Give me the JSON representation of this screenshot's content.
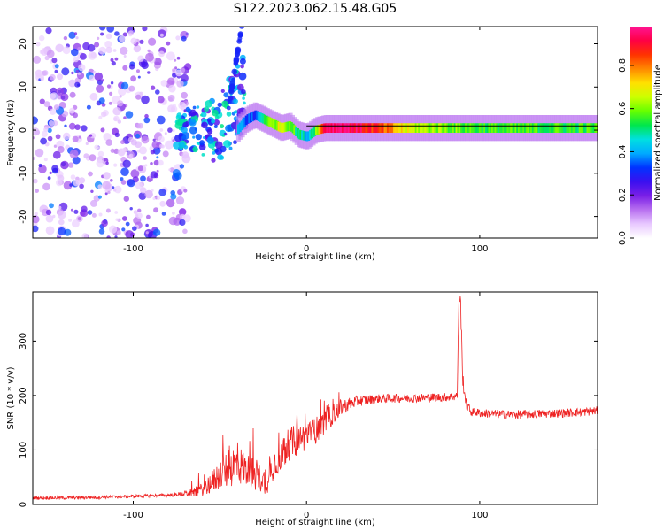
{
  "title": "S122.2023.062.15.48.G05",
  "chart_data": [
    {
      "type": "heatmap",
      "xlabel": "Height of straight line (km)",
      "ylabel": "Frequency (Hz)",
      "xlim": [
        -158,
        168
      ],
      "ylim": [
        -25,
        24
      ],
      "xticks": [
        -100,
        0,
        100
      ],
      "yticks": [
        -20,
        -10,
        0,
        10,
        20
      ],
      "colorbar": {
        "label": "Normalized spectral amplitude",
        "range": [
          0.0,
          0.98
        ],
        "ticks": [
          0.0,
          0.2,
          0.4,
          0.6,
          0.8
        ],
        "colormap": [
          "#ffffff",
          "#e8c8ff",
          "#b870f0",
          "#7a1fe6",
          "#3a10f0",
          "#0033ff",
          "#00aaff",
          "#00e0e0",
          "#00e64d",
          "#66ff00",
          "#ccff00",
          "#ffe000",
          "#ff8800",
          "#ff3300",
          "#ff0044",
          "#ff1493"
        ]
      },
      "ridge": {
        "x": [
          -100,
          -80,
          -60,
          -45,
          -35,
          -30,
          -25,
          -20,
          -15,
          -10,
          -5,
          0,
          5,
          10,
          20,
          40,
          60,
          80,
          100,
          120,
          140,
          168
        ],
        "y": [
          1.5,
          2,
          0.5,
          -2,
          2.5,
          3.5,
          2.5,
          1.5,
          0.5,
          1,
          -1,
          -1.5,
          0,
          0.5,
          0.5,
          0.5,
          0.5,
          0.5,
          0.5,
          0.5,
          0.5,
          0.5
        ],
        "amplitude": [
          0.3,
          0.35,
          0.4,
          0.45,
          0.35,
          0.3,
          0.55,
          0.6,
          0.7,
          0.6,
          0.5,
          0.4,
          0.6,
          0.95,
          0.98,
          0.85,
          0.65,
          0.6,
          0.55,
          0.55,
          0.55,
          0.55
        ]
      }
    },
    {
      "type": "line",
      "xlabel": "Height of straight line (km)",
      "ylabel": "SNR (10 * v/v)",
      "xlim": [
        -158,
        168
      ],
      "ylim": [
        0,
        390
      ],
      "xticks": [
        -100,
        0,
        100
      ],
      "yticks": [
        0,
        100,
        200,
        300
      ],
      "color": "#ee2222",
      "series": [
        {
          "x": [
            -158,
            -140,
            -120,
            -100,
            -90,
            -80,
            -75,
            -70,
            -65,
            -60,
            -55,
            -50,
            -45,
            -40,
            -35,
            -30,
            -25,
            -22,
            -20,
            -15,
            -10,
            -5,
            0,
            5,
            10,
            15,
            20,
            25,
            30,
            40,
            50,
            60,
            70,
            80,
            85,
            87,
            88,
            89,
            90,
            92,
            95,
            100,
            110,
            120,
            130,
            140,
            150,
            160,
            168
          ],
          "y": [
            12,
            12,
            13,
            15,
            16,
            17,
            18,
            20,
            22,
            28,
            40,
            55,
            65,
            75,
            65,
            55,
            45,
            35,
            70,
            90,
            110,
            120,
            125,
            135,
            150,
            165,
            178,
            185,
            190,
            194,
            195,
            195,
            196,
            197,
            198,
            200,
            380,
            370,
            240,
            185,
            170,
            168,
            166,
            165,
            166,
            167,
            168,
            170,
            172
          ],
          "noise": [
            3,
            3,
            3,
            3,
            3,
            3,
            4,
            5,
            8,
            12,
            20,
            28,
            35,
            40,
            30,
            30,
            25,
            15,
            30,
            30,
            30,
            30,
            25,
            25,
            22,
            20,
            15,
            12,
            10,
            8,
            8,
            8,
            8,
            8,
            8,
            8,
            15,
            15,
            20,
            10,
            8,
            8,
            8,
            8,
            8,
            8,
            8,
            8,
            8
          ]
        }
      ]
    }
  ]
}
